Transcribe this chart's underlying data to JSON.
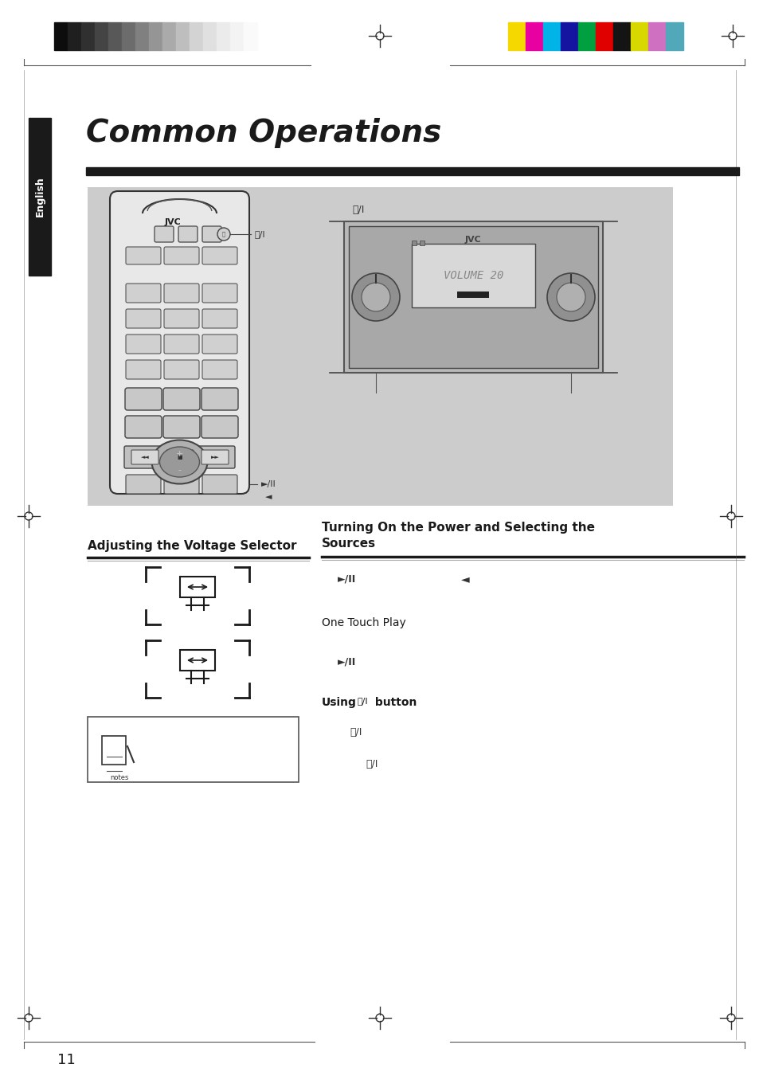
{
  "page_bg": "#ffffff",
  "title": "Common Operations",
  "title_color": "#1a1a1a",
  "title_fontsize": 28,
  "english_tab_bg": "#1a1a1a",
  "english_text": "English",
  "header_bar_colors_gray": [
    "#0d0d0d",
    "#1f1f1f",
    "#303030",
    "#444444",
    "#585858",
    "#6c6c6c",
    "#808080",
    "#959595",
    "#aaaaaa",
    "#bebebe",
    "#d3d3d3",
    "#e0e0e0",
    "#ebebeb",
    "#f3f3f3",
    "#fafafa"
  ],
  "header_bar_colors_color": [
    "#f5d800",
    "#e800a0",
    "#00b4e8",
    "#1414a0",
    "#00a040",
    "#e00000",
    "#141414",
    "#d8d800",
    "#d070c0",
    "#50a8b8"
  ],
  "section1_title": "Adjusting the Voltage Selector",
  "section2_title": "Turning On the Power and Selecting the\nSources",
  "one_touch_play": "One Touch Play",
  "using_button": "Using",
  "using_power": "⏻/I",
  "using_button_word": " button",
  "play_pause_symbol": "►/II",
  "arrow_left_symbol": "◄",
  "power_symbol": "⏻/I",
  "page_number": "11",
  "image_area_bg": "#cccccc",
  "notes_box_bg": "#ffffff"
}
